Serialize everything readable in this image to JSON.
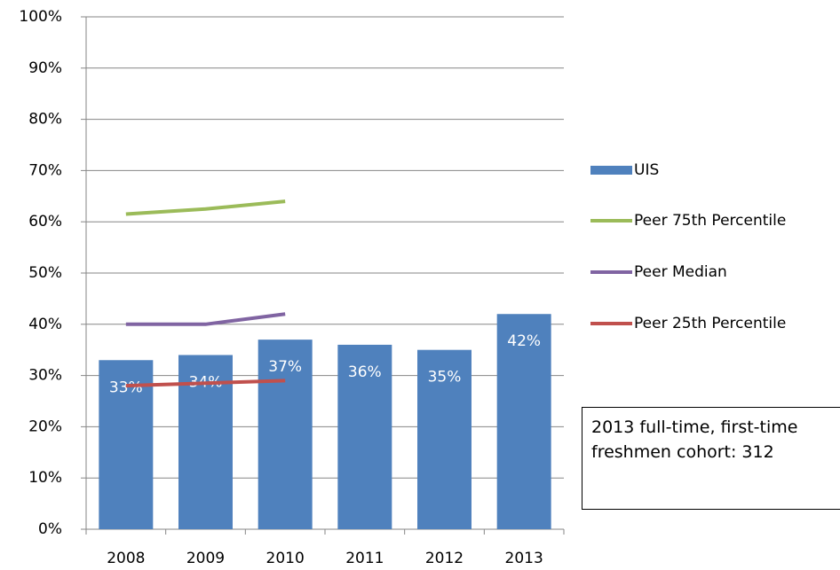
{
  "chart_data": {
    "type": "bar",
    "categories": [
      "2008",
      "2009",
      "2010",
      "2011",
      "2012",
      "2013"
    ],
    "series": [
      {
        "name": "UIS",
        "type": "bar",
        "color": "#4f81bd",
        "values": [
          33,
          34,
          37,
          36,
          35,
          42
        ],
        "value_labels": [
          "33%",
          "34%",
          "37%",
          "36%",
          "35%",
          "42%"
        ]
      },
      {
        "name": "Peer 75th Percentile",
        "type": "line",
        "color": "#9bbb59",
        "values": [
          61.5,
          62.5,
          64,
          null,
          null,
          null
        ]
      },
      {
        "name": "Peer Median",
        "type": "line",
        "color": "#8064a2",
        "values": [
          40,
          40,
          42,
          null,
          null,
          null
        ]
      },
      {
        "name": "Peer 25th Percentile",
        "type": "line",
        "color": "#c0504d",
        "values": [
          28,
          28.5,
          29,
          null,
          null,
          null
        ]
      }
    ],
    "ylim": [
      0,
      100
    ],
    "yticks": [
      {
        "value": 0,
        "label": "0%"
      },
      {
        "value": 10,
        "label": "10%"
      },
      {
        "value": 20,
        "label": "20%"
      },
      {
        "value": 30,
        "label": "30%"
      },
      {
        "value": 40,
        "label": "40%"
      },
      {
        "value": 50,
        "label": "50%"
      },
      {
        "value": 60,
        "label": "60%"
      },
      {
        "value": 70,
        "label": "70%"
      },
      {
        "value": 80,
        "label": "80%"
      },
      {
        "value": 90,
        "label": "90%"
      },
      {
        "value": 100,
        "label": "100%"
      }
    ],
    "grid": true,
    "legend": "right",
    "annotations": [
      "2013 full-time, first-time freshmen cohort: 312"
    ]
  }
}
